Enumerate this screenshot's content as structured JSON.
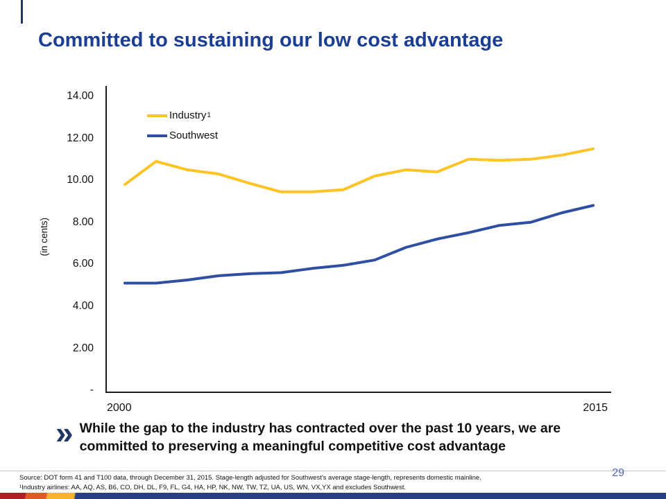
{
  "slide": {
    "title": "Committed to sustaining our low cost advantage",
    "bullet_marker": "»",
    "bullet_text": "While the gap to the industry has contracted over the past 10 years, we are committed to preserving a meaningful competitive cost advantage",
    "source_line": "Source: DOT form 41 and T100 data, through December 31, 2015. Stage-length adjusted for Southwest's average stage-length, represents domestic mainline.",
    "footnote_line": "¹Industry airlines: AA, AQ, AS, B6, CO, DH, DL, F9, FL, G4, HA, HP, NK, NW, TW, TZ, UA, US, WN, VX,YX and excludes Southwest.",
    "page_number": "29",
    "colors": {
      "title_blue": "#1B3E93",
      "accent_navy": "#1F3864",
      "industry_yellow": "#FEC324",
      "southwest_blue": "#2E4FA2"
    }
  },
  "chart_data": {
    "type": "line",
    "x": [
      2000,
      2001,
      2002,
      2003,
      2004,
      2005,
      2006,
      2007,
      2008,
      2009,
      2010,
      2011,
      2012,
      2013,
      2014,
      2015
    ],
    "series": [
      {
        "name": "Industry",
        "superscript": "1",
        "color": "#FEC324",
        "values": [
          9.8,
          10.9,
          10.5,
          10.3,
          9.85,
          9.45,
          9.45,
          9.55,
          10.2,
          10.5,
          10.4,
          11.0,
          10.95,
          11.0,
          11.2,
          11.5
        ]
      },
      {
        "name": "Southwest",
        "color": "#2E4FA2",
        "values": [
          5.1,
          5.1,
          5.25,
          5.45,
          5.55,
          5.6,
          5.8,
          5.95,
          6.2,
          6.8,
          7.2,
          7.5,
          7.85,
          8.0,
          8.45,
          8.8
        ]
      }
    ],
    "ylabel": "(in cents)",
    "ylim": [
      0,
      14
    ],
    "y_tick_labels": [
      "14.00",
      "12.00",
      "10.00",
      "8.00",
      "6.00",
      "4.00",
      "2.00",
      "-"
    ],
    "x_tick_labels": [
      "2000",
      "2015"
    ],
    "grid": false,
    "legend_position": "top-left-inside"
  }
}
